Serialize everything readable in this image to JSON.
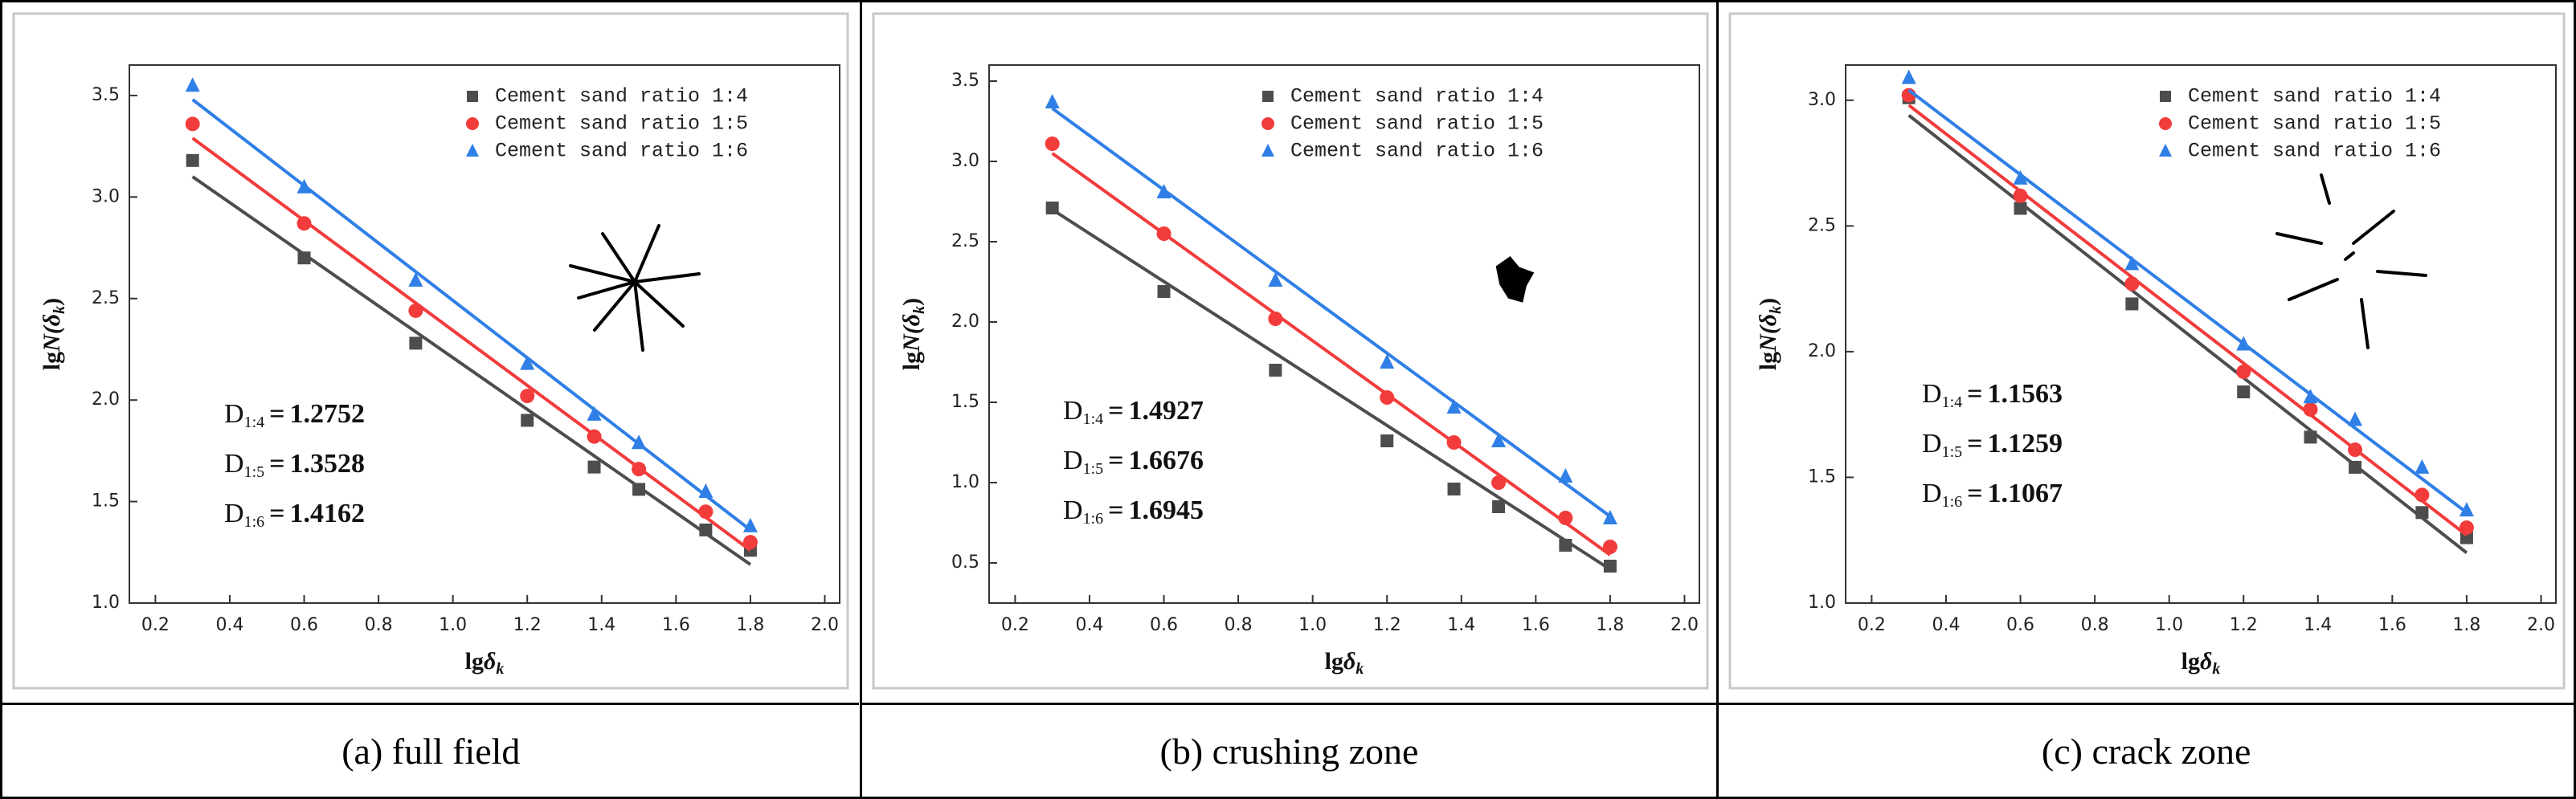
{
  "chart_data": [
    {
      "type": "scatter",
      "caption": "(a) full field",
      "xlabel": [
        "lg",
        "δ",
        "k"
      ],
      "ylabel": [
        "lg",
        "N(δ",
        "k",
        ")"
      ],
      "x": [
        0.3,
        0.6,
        0.9,
        1.2,
        1.38,
        1.5,
        1.68,
        1.8
      ],
      "fit_x": [
        0.3,
        1.8
      ],
      "xlim": [
        0.13,
        2.04
      ],
      "ylim": [
        1.0,
        3.65
      ],
      "xticks": [
        0.2,
        0.4,
        0.6,
        0.8,
        {
          "value": 1,
          "label": "1.0"
        },
        1.2,
        1.4,
        1.6,
        1.8,
        {
          "value": 2,
          "label": "2.0"
        }
      ],
      "yticks": [
        {
          "value": 1,
          "label": "1.0"
        },
        1.5,
        {
          "value": 2,
          "label": "2.0"
        },
        2.5,
        {
          "value": 3,
          "label": "3.0"
        },
        3.5
      ],
      "series": [
        {
          "name": "Cement sand ratio 1:4",
          "color": "#4d4d4d",
          "marker": "square",
          "values": [
            3.18,
            2.7,
            2.28,
            1.9,
            1.67,
            1.56,
            1.36,
            1.26
          ],
          "fit": [
            3.1,
            1.19
          ]
        },
        {
          "name": "Cement sand ratio 1:5",
          "color": "#f23b3b",
          "marker": "circle",
          "values": [
            3.36,
            2.87,
            2.44,
            2.02,
            1.82,
            1.66,
            1.45,
            1.3
          ],
          "fit": [
            3.29,
            1.26
          ]
        },
        {
          "name": "Cement sand ratio 1:6",
          "color": "#2f7fe6",
          "marker": "triangle",
          "values": [
            3.55,
            3.05,
            2.59,
            2.18,
            1.93,
            1.79,
            1.55,
            1.38
          ],
          "fit": [
            3.48,
            1.36
          ]
        }
      ],
      "annotations": [
        {
          "symbol": "D",
          "subscript": "1:4",
          "equals": "=",
          "value": 1.2752
        },
        {
          "symbol": "D",
          "subscript": "1:5",
          "equals": "=",
          "value": 1.3528
        },
        {
          "symbol": "D",
          "subscript": "1:6",
          "equals": "=",
          "value": 1.4162
        }
      ]
    },
    {
      "type": "scatter",
      "caption": "(b) crushing zone",
      "xlabel": [
        "lg",
        "δ",
        "k"
      ],
      "ylabel": [
        "lg",
        "N(δ",
        "k",
        ")"
      ],
      "x": [
        0.3,
        0.6,
        0.9,
        1.2,
        1.38,
        1.5,
        1.68,
        1.8
      ],
      "fit_x": [
        0.3,
        1.8
      ],
      "xlim": [
        0.13,
        2.04
      ],
      "ylim": [
        0.25,
        3.6
      ],
      "xticks": [
        0.2,
        0.4,
        0.6,
        0.8,
        {
          "value": 1,
          "label": "1.0"
        },
        1.2,
        1.4,
        1.6,
        1.8,
        {
          "value": 2,
          "label": "2.0"
        }
      ],
      "yticks": [
        0.5,
        {
          "value": 1,
          "label": "1.0"
        },
        1.5,
        {
          "value": 2,
          "label": "2.0"
        },
        2.5,
        {
          "value": 3,
          "label": "3.0"
        },
        3.5
      ],
      "series": [
        {
          "name": "Cement sand ratio 1:4",
          "color": "#4d4d4d",
          "marker": "square",
          "values": [
            2.71,
            2.19,
            1.7,
            1.26,
            0.96,
            0.85,
            0.61,
            0.48
          ],
          "fit": [
            2.7,
            0.46
          ]
        },
        {
          "name": "Cement sand ratio 1:5",
          "color": "#f23b3b",
          "marker": "circle",
          "values": [
            3.11,
            2.55,
            2.02,
            1.53,
            1.25,
            1.0,
            0.78,
            0.6
          ],
          "fit": [
            3.05,
            0.55
          ]
        },
        {
          "name": "Cement sand ratio 1:6",
          "color": "#2f7fe6",
          "marker": "triangle",
          "values": [
            3.37,
            2.81,
            2.26,
            1.75,
            1.47,
            1.26,
            1.04,
            0.78
          ],
          "fit": [
            3.33,
            0.79
          ]
        }
      ],
      "annotations": [
        {
          "symbol": "D",
          "subscript": "1:4",
          "equals": "=",
          "value": 1.4927
        },
        {
          "symbol": "D",
          "subscript": "1:5",
          "equals": "=",
          "value": 1.6676
        },
        {
          "symbol": "D",
          "subscript": "1:6",
          "equals": "=",
          "value": 1.6945
        }
      ]
    },
    {
      "type": "scatter",
      "caption": "(c) crack zone",
      "xlabel": [
        "lg",
        "δ",
        "k"
      ],
      "ylabel": [
        "lg",
        "N(δ",
        "k",
        ")"
      ],
      "x": [
        0.3,
        0.6,
        0.9,
        1.2,
        1.38,
        1.5,
        1.68,
        1.8
      ],
      "fit_x": [
        0.3,
        1.8
      ],
      "xlim": [
        0.13,
        2.04
      ],
      "ylim": [
        1.0,
        3.14
      ],
      "xticks": [
        0.2,
        0.4,
        0.6,
        0.8,
        {
          "value": 1,
          "label": "1.0"
        },
        1.2,
        1.4,
        1.6,
        1.8,
        {
          "value": 2,
          "label": "2.0"
        }
      ],
      "yticks": [
        {
          "value": 1,
          "label": "1.0"
        },
        1.5,
        {
          "value": 2,
          "label": "2.0"
        },
        2.5,
        {
          "value": 3,
          "label": "3.0"
        }
      ],
      "series": [
        {
          "name": "Cement sand ratio 1:4",
          "color": "#4d4d4d",
          "marker": "square",
          "values": [
            3.01,
            2.57,
            2.19,
            1.84,
            1.66,
            1.54,
            1.36,
            1.26
          ],
          "fit": [
            2.94,
            1.2
          ]
        },
        {
          "name": "Cement sand ratio 1:5",
          "color": "#f23b3b",
          "marker": "circle",
          "values": [
            3.02,
            2.62,
            2.27,
            1.92,
            1.77,
            1.61,
            1.43,
            1.3
          ],
          "fit": [
            2.98,
            1.27
          ]
        },
        {
          "name": "Cement sand ratio 1:6",
          "color": "#2f7fe6",
          "marker": "triangle",
          "values": [
            3.09,
            2.69,
            2.35,
            2.03,
            1.82,
            1.73,
            1.54,
            1.37
          ],
          "fit": [
            3.04,
            1.36
          ]
        }
      ],
      "annotations": [
        {
          "symbol": "D",
          "subscript": "1:4",
          "equals": "=",
          "value": 1.1563
        },
        {
          "symbol": "D",
          "subscript": "1:5",
          "equals": "=",
          "value": 1.1259
        },
        {
          "symbol": "D",
          "subscript": "1:6",
          "equals": "=",
          "value": 1.1067
        }
      ]
    }
  ]
}
